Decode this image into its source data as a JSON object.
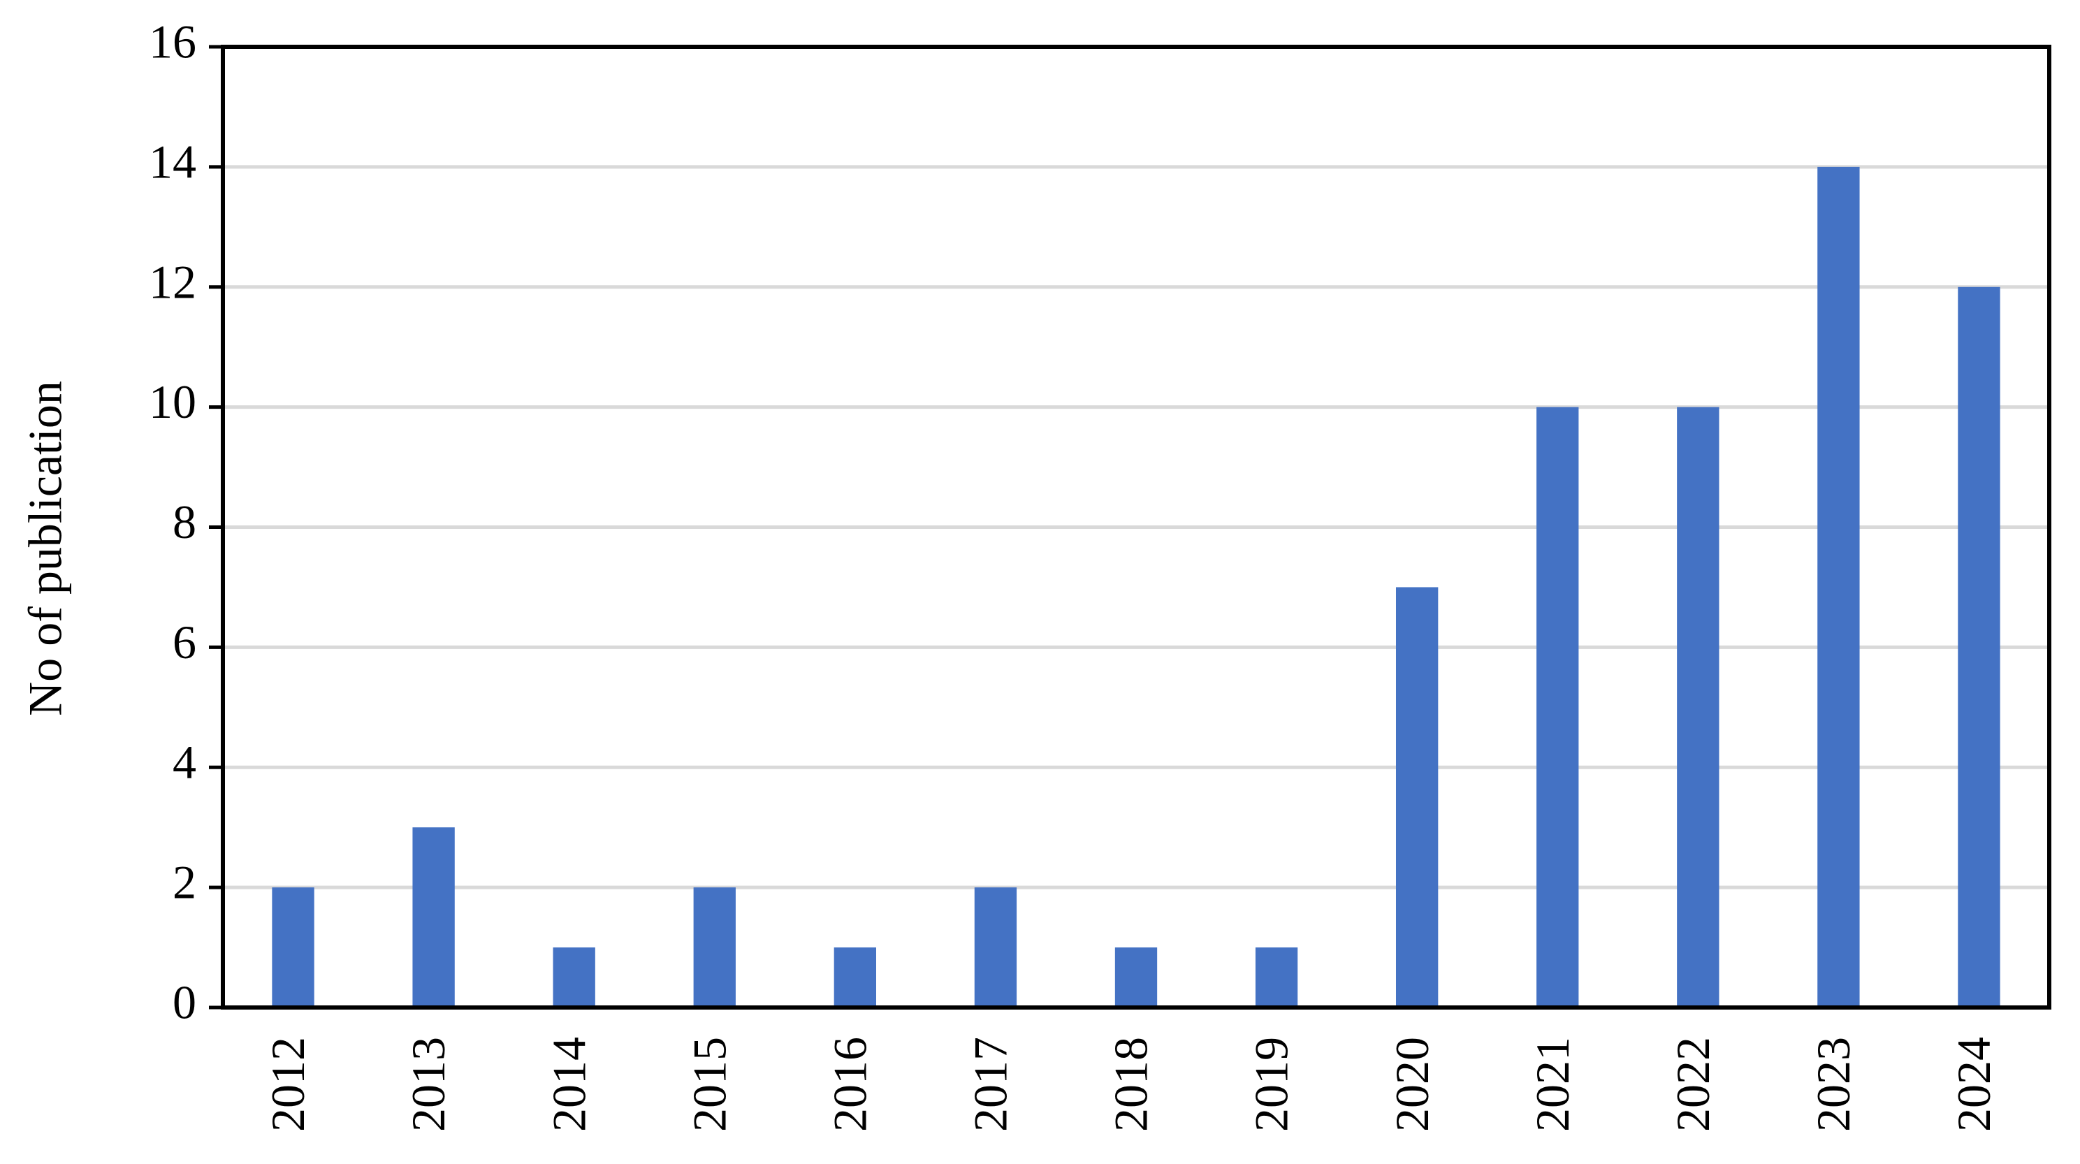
{
  "chart_data": {
    "type": "bar",
    "y_axis_label": "No of publication",
    "categories": [
      "2012",
      "2013",
      "2014",
      "2015",
      "2016",
      "2017",
      "2018",
      "2019",
      "2020",
      "2021",
      "2022",
      "2023",
      "2024"
    ],
    "values": [
      2,
      3,
      1,
      2,
      1,
      2,
      1,
      1,
      7,
      10,
      10,
      14,
      12
    ],
    "color": "#4472c4",
    "ylim": [
      0,
      16
    ],
    "yticks": [
      0,
      2,
      4,
      6,
      8,
      10,
      12,
      14,
      16
    ],
    "grid": true
  }
}
